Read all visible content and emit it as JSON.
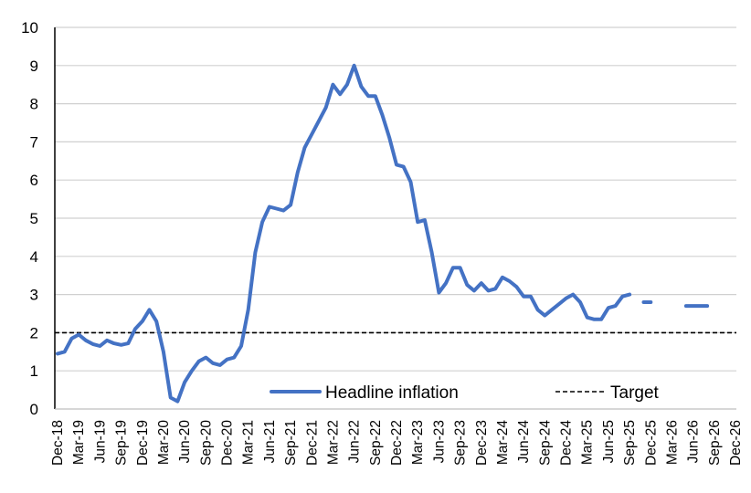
{
  "chart_data": {
    "type": "line",
    "title": "",
    "xlabel": "",
    "ylabel": "",
    "ylim": [
      0,
      10
    ],
    "yticks": [
      0,
      1,
      2,
      3,
      4,
      5,
      6,
      7,
      8,
      9,
      10
    ],
    "grid": true,
    "legend_placement": "bottom-inside",
    "x_start": "Dec-18",
    "x_end": "Dec-26",
    "x_tick_labels": [
      "Dec-18",
      "Mar-19",
      "Jun-19",
      "Sep-19",
      "Dec-19",
      "Mar-20",
      "Jun-20",
      "Sep-20",
      "Dec-20",
      "Mar-21",
      "Jun-21",
      "Sep-21",
      "Dec-21",
      "Mar-22",
      "Jun-22",
      "Sep-22",
      "Dec-22",
      "Mar-23",
      "Jun-23",
      "Sep-23",
      "Dec-23",
      "Mar-24",
      "Jun-24",
      "Sep-24",
      "Dec-24",
      "Mar-25",
      "Jun-25",
      "Sep-25",
      "Dec-25",
      "Mar-26",
      "Jun-26",
      "Sep-26",
      "Dec-26"
    ],
    "series": [
      {
        "name": "Headline inflation",
        "color": "#4472C4",
        "style": "solid",
        "start": "Dec-18",
        "values": [
          1.45,
          1.5,
          1.85,
          1.95,
          1.8,
          1.7,
          1.65,
          1.8,
          1.72,
          1.68,
          1.72,
          2.1,
          2.3,
          2.6,
          2.3,
          1.5,
          0.3,
          0.2,
          0.7,
          1.0,
          1.25,
          1.35,
          1.2,
          1.15,
          1.3,
          1.35,
          1.65,
          2.6,
          4.1,
          4.9,
          5.3,
          5.25,
          5.2,
          5.35,
          6.2,
          6.85,
          7.2,
          7.55,
          7.9,
          8.5,
          8.25,
          8.5,
          9.0,
          8.45,
          8.2,
          8.2,
          7.7,
          7.1,
          6.4,
          6.35,
          5.95,
          4.9,
          4.95,
          4.1,
          3.05,
          3.3,
          3.7,
          3.7,
          3.25,
          3.1,
          3.3,
          3.1,
          3.15,
          3.45,
          3.35,
          3.2,
          2.95,
          2.95,
          2.6,
          2.45,
          2.6,
          2.75,
          2.9,
          3.0,
          2.8,
          2.4,
          2.35,
          2.35,
          2.65,
          2.7,
          2.95,
          3.0
        ]
      },
      {
        "color": "#4472C4",
        "style": "solid",
        "segments": [
          {
            "x": [
              "Nov-25",
              "Dec-25"
            ],
            "values": [
              2.8,
              2.8
            ]
          },
          {
            "x": [
              "May-26",
              "Jun-26",
              "Jul-26",
              "Aug-26"
            ],
            "values": [
              2.7,
              2.7,
              2.7,
              2.7
            ]
          }
        ]
      },
      {
        "name": "Target",
        "color": "#000000",
        "style": "dashed",
        "value": 2
      }
    ],
    "legend": [
      {
        "label": "Headline inflation",
        "color": "#4472C4",
        "style": "solid"
      },
      {
        "label": "Target",
        "color": "#000000",
        "style": "dashed"
      }
    ]
  }
}
